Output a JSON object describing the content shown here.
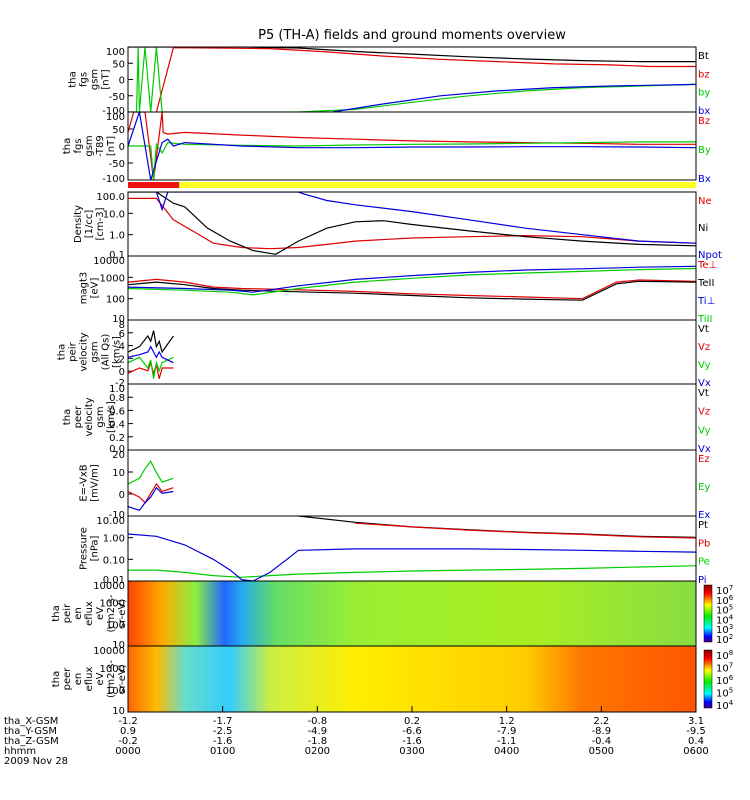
{
  "title": "P5 (TH-A) fields and ground moments overview",
  "colors": {
    "black": "#000000",
    "red": "#e00000",
    "green": "#00cc00",
    "blue": "#0000dd",
    "mode_bar_red": "#ee1111",
    "mode_bar_yellow": "#ffff22"
  },
  "chart_data": [
    {
      "type": "line",
      "panel": "fgs",
      "ylabel": [
        "tha",
        "fgs",
        "gsm",
        "[nT]"
      ],
      "ylim": [
        -100,
        100
      ],
      "yticks": [
        "100",
        "50",
        "0",
        "-50",
        "-100"
      ],
      "series": [
        {
          "name": "Bt",
          "color": "black",
          "x": [
            0.0,
            0.03,
            0.05,
            0.08,
            0.2,
            0.3,
            0.4,
            0.5,
            0.6,
            0.7,
            0.8,
            0.9,
            1.0
          ],
          "y": [
            100,
            100,
            100,
            100,
            100,
            97,
            86,
            78,
            70,
            63,
            58,
            55,
            55
          ]
        },
        {
          "name": "bz",
          "color": "red",
          "x": [
            0.05,
            0.08,
            0.15,
            0.25,
            0.35,
            0.45,
            0.55,
            0.65,
            0.75,
            0.85,
            0.92,
            1.0
          ],
          "y": [
            -100,
            98,
            97,
            95,
            85,
            72,
            62,
            55,
            48,
            45,
            40,
            40
          ]
        },
        {
          "name": "by",
          "color": "green",
          "x": [
            0.0,
            0.015,
            0.018,
            0.02,
            0.03,
            0.04,
            0.05,
            0.06,
            0.3,
            0.4,
            0.5,
            0.6,
            0.7,
            0.8,
            0.9,
            1.0
          ],
          "y": [
            -100,
            -100,
            100,
            -100,
            100,
            -100,
            100,
            -100,
            -100,
            -92,
            -70,
            -50,
            -35,
            -25,
            -20,
            -15
          ]
        },
        {
          "name": "bx",
          "color": "blue",
          "x": [
            0.36,
            0.45,
            0.55,
            0.65,
            0.75,
            0.85,
            1.0
          ],
          "y": [
            -100,
            -75,
            -50,
            -35,
            -25,
            -20,
            -15
          ]
        }
      ]
    },
    {
      "type": "line",
      "panel": "fgs-t89",
      "ylabel": [
        "tha",
        "fgs",
        "gsm",
        "-T89",
        "[nT]"
      ],
      "ylim": [
        -100,
        100
      ],
      "yticks": [
        "100",
        "50",
        "0",
        "-50",
        "-100"
      ],
      "series": [
        {
          "name": "Bz",
          "color": "red",
          "x": [
            0.0,
            0.01,
            0.03,
            0.045,
            0.06,
            0.062,
            0.07,
            0.1,
            0.2,
            0.3,
            0.4,
            0.5,
            0.6,
            0.7,
            0.8,
            0.9,
            1.0
          ],
          "y": [
            40,
            100,
            100,
            -100,
            100,
            40,
            35,
            40,
            32,
            25,
            20,
            15,
            12,
            10,
            8,
            5,
            5
          ]
        },
        {
          "name": "By",
          "color": "green",
          "x": [
            0.0,
            0.04,
            0.045,
            0.05,
            0.06,
            0.07,
            0.1,
            0.2,
            0.3,
            0.4,
            0.5,
            0.6,
            0.7,
            0.8,
            0.9,
            1.0
          ],
          "y": [
            0,
            0,
            -100,
            5,
            -20,
            10,
            5,
            2,
            0,
            3,
            5,
            6,
            8,
            10,
            12,
            12
          ]
        },
        {
          "name": "Bx",
          "color": "blue",
          "x": [
            0.0,
            0.02,
            0.04,
            0.06,
            0.07,
            0.08,
            0.1,
            0.2,
            0.3,
            0.4,
            0.5,
            0.6,
            0.7,
            0.8,
            0.9,
            1.0
          ],
          "y": [
            0,
            100,
            -100,
            10,
            20,
            0,
            10,
            0,
            -5,
            -5,
            -3,
            -3,
            -2,
            -2,
            -3,
            -5
          ]
        }
      ]
    },
    {
      "type": "line",
      "panel": "density",
      "ylabel": [
        "Density",
        "[1/cc]",
        "[cm-3]"
      ],
      "scale": "log",
      "ylim": [
        0.1,
        100
      ],
      "yticks": [
        "100.0",
        "10.0",
        "1.0",
        "0.1"
      ],
      "series": [
        {
          "name": "Ne",
          "color": "red",
          "x": [
            0.0,
            0.05,
            0.08,
            0.12,
            0.15,
            0.2,
            0.25,
            0.3,
            0.35,
            0.4,
            0.5,
            0.6,
            0.7,
            0.8,
            0.9,
            1.0
          ],
          "y": [
            50,
            50,
            5,
            1.2,
            0.4,
            0.25,
            0.22,
            0.25,
            0.35,
            0.5,
            0.7,
            0.8,
            0.9,
            0.8,
            0.5,
            0.4
          ]
        },
        {
          "name": "Ni",
          "color": "black",
          "x": [
            0.0,
            0.05,
            0.08,
            0.1,
            0.14,
            0.18,
            0.22,
            0.26,
            0.3,
            0.35,
            0.4,
            0.45,
            0.5,
            0.6,
            0.7,
            0.8,
            0.9,
            1.0
          ],
          "y": [
            100,
            100,
            30,
            20,
            2,
            0.5,
            0.18,
            0.12,
            0.5,
            2,
            4,
            4.5,
            3,
            1.5,
            0.8,
            0.5,
            0.35,
            0.3
          ]
        },
        {
          "name": "Npot",
          "color": "blue",
          "x": [
            0.05,
            0.06,
            0.07,
            0.3,
            0.31,
            0.35,
            0.4,
            0.5,
            0.6,
            0.7,
            0.8,
            0.9,
            1.0
          ],
          "y": [
            100,
            15,
            100,
            100,
            80,
            40,
            25,
            12,
            5,
            2,
            1,
            0.5,
            0.4
          ]
        }
      ]
    },
    {
      "type": "line",
      "panel": "temperature",
      "ylabel": [
        "magt3",
        "[eV]"
      ],
      "scale": "log",
      "ylim": [
        10,
        10000
      ],
      "yticks": [
        "10000",
        "1000",
        "100",
        "10"
      ],
      "series": [
        {
          "name": "Te⊥",
          "color": "red",
          "x": [
            0.0,
            0.05,
            0.1,
            0.15,
            0.2,
            0.3,
            0.4,
            0.5,
            0.6,
            0.7,
            0.8,
            0.86,
            0.9,
            1.0
          ],
          "y": [
            600,
            800,
            600,
            350,
            300,
            260,
            220,
            170,
            140,
            120,
            100,
            600,
            750,
            650
          ]
        },
        {
          "name": "TeII",
          "color": "black",
          "x": [
            0.0,
            0.05,
            0.1,
            0.15,
            0.2,
            0.3,
            0.4,
            0.5,
            0.6,
            0.7,
            0.8,
            0.86,
            0.9,
            1.0
          ],
          "y": [
            450,
            600,
            450,
            300,
            250,
            210,
            180,
            140,
            110,
            95,
            85,
            500,
            650,
            600
          ]
        },
        {
          "name": "Ti⊥",
          "color": "blue",
          "x": [
            0.0,
            0.1,
            0.18,
            0.22,
            0.3,
            0.4,
            0.5,
            0.6,
            0.7,
            0.8,
            0.9,
            1.0
          ],
          "y": [
            350,
            300,
            250,
            200,
            400,
            800,
            1200,
            1700,
            2200,
            2500,
            3000,
            3300
          ]
        },
        {
          "name": "TiII",
          "color": "green",
          "x": [
            0.0,
            0.1,
            0.18,
            0.22,
            0.3,
            0.4,
            0.5,
            0.6,
            0.7,
            0.8,
            0.9,
            1.0
          ],
          "y": [
            300,
            250,
            200,
            150,
            300,
            600,
            900,
            1300,
            1600,
            1900,
            2300,
            2600
          ]
        }
      ]
    },
    {
      "type": "line",
      "panel": "ion-velocity",
      "ylabel": [
        "tha",
        "peir",
        "velocity",
        "gsm",
        "(All Qs)",
        "[km/s]"
      ],
      "ylim": [
        -4,
        8
      ],
      "yticks": [
        "8",
        "6",
        "4",
        "2",
        "0",
        "-2"
      ],
      "series": [
        {
          "name": "Vt",
          "color": "black",
          "x": [
            0.0,
            0.02,
            0.035,
            0.04,
            0.045,
            0.05,
            0.055,
            0.06,
            0.08
          ],
          "y": [
            2,
            3,
            5,
            4,
            6,
            3,
            4,
            2,
            5
          ]
        },
        {
          "name": "Vz",
          "color": "red",
          "x": [
            0.0,
            0.02,
            0.035,
            0.04,
            0.045,
            0.05,
            0.055,
            0.06,
            0.08
          ],
          "y": [
            -2,
            -1,
            -1.5,
            0,
            -2,
            -0.5,
            -3,
            -1,
            -1
          ]
        },
        {
          "name": "Vy",
          "color": "green",
          "x": [
            0.0,
            0.02,
            0.035,
            0.04,
            0.045,
            0.05,
            0.055,
            0.06,
            0.08
          ],
          "y": [
            0,
            1,
            -1,
            0.5,
            -3,
            0,
            -1.5,
            0,
            1
          ]
        },
        {
          "name": "Vx",
          "color": "blue",
          "x": [
            0.0,
            0.02,
            0.035,
            0.04,
            0.045,
            0.05,
            0.055,
            0.06,
            0.08
          ],
          "y": [
            1,
            1.5,
            2,
            3,
            2,
            1,
            2,
            1,
            0
          ]
        }
      ]
    },
    {
      "type": "line",
      "panel": "electron-velocity",
      "ylabel": [
        "tha",
        "peer",
        "velocity",
        "gsm",
        "[km/s]"
      ],
      "ylim": [
        0,
        1
      ],
      "yticks": [
        "1.0",
        "0.8",
        "0.6",
        "0.4",
        "0.2",
        "0.0"
      ],
      "series": [
        {
          "name": "Vt",
          "color": "black",
          "x": [],
          "y": []
        },
        {
          "name": "Vz",
          "color": "red",
          "x": [],
          "y": []
        },
        {
          "name": "Vy",
          "color": "green",
          "x": [],
          "y": []
        },
        {
          "name": "Vx",
          "color": "blue",
          "x": [],
          "y": []
        }
      ]
    },
    {
      "type": "line",
      "panel": "efield",
      "ylabel": [
        "E=-VxB",
        "[mV/m]"
      ],
      "ylim": [
        -15,
        20
      ],
      "yticks": [
        "20",
        "10",
        "0",
        "-10"
      ],
      "series": [
        {
          "name": "Ez",
          "color": "red",
          "x": [
            0.0,
            0.02,
            0.03,
            0.04,
            0.05,
            0.06,
            0.08
          ],
          "y": [
            -2,
            -5,
            -8,
            -3,
            2,
            -2,
            0
          ]
        },
        {
          "name": "Ey",
          "color": "green",
          "x": [
            0.0,
            0.02,
            0.03,
            0.04,
            0.05,
            0.06,
            0.08
          ],
          "y": [
            2,
            5,
            10,
            14,
            8,
            3,
            5
          ]
        },
        {
          "name": "Ex",
          "color": "blue",
          "x": [
            0.0,
            0.02,
            0.03,
            0.04,
            0.05,
            0.06,
            0.08
          ],
          "y": [
            -10,
            -12,
            -8,
            -5,
            0,
            -3,
            -2
          ]
        }
      ]
    },
    {
      "type": "line",
      "panel": "pressure",
      "ylabel": [
        "Pressure",
        "[nPa]"
      ],
      "scale": "log",
      "ylim": [
        0.005,
        20
      ],
      "yticks": [
        "10.00",
        "1.00",
        "0.10",
        "0.01"
      ],
      "series": [
        {
          "name": "Pt",
          "color": "black",
          "x": [
            0.3,
            0.4,
            0.5,
            0.6,
            0.7,
            0.8,
            0.9,
            1.0
          ],
          "y": [
            20,
            9,
            5,
            3.5,
            2.5,
            2,
            1.5,
            1.3
          ]
        },
        {
          "name": "Pb",
          "color": "red",
          "x": [
            0.4,
            0.5,
            0.6,
            0.7,
            0.8,
            0.9,
            1.0
          ],
          "y": [
            8,
            5,
            3.3,
            2.4,
            1.9,
            1.4,
            1.2
          ]
        },
        {
          "name": "Pe",
          "color": "green",
          "x": [
            0.0,
            0.05,
            0.1,
            0.15,
            0.2,
            0.25,
            0.3,
            0.4,
            0.5,
            0.6,
            0.7,
            0.8,
            0.9,
            1.0
          ],
          "y": [
            0.02,
            0.02,
            0.015,
            0.01,
            0.008,
            0.01,
            0.012,
            0.015,
            0.018,
            0.02,
            0.022,
            0.025,
            0.03,
            0.035
          ]
        },
        {
          "name": "Pi",
          "color": "blue",
          "x": [
            0.0,
            0.05,
            0.1,
            0.15,
            0.18,
            0.2,
            0.22,
            0.25,
            0.28,
            0.3,
            0.4,
            0.5,
            0.6,
            0.7,
            0.8,
            0.9,
            1.0
          ],
          "y": [
            2,
            1.5,
            0.5,
            0.08,
            0.02,
            0.006,
            0.005,
            0.015,
            0.08,
            0.25,
            0.3,
            0.3,
            0.3,
            0.28,
            0.25,
            0.22,
            0.2
          ]
        }
      ]
    },
    {
      "type": "heatmap",
      "panel": "ion-spectrogram",
      "ylabel": [
        "tha",
        "peir",
        "en",
        "eflux",
        "eV",
        "(cm2-s-",
        "sr-eV)"
      ],
      "yticks": [
        "10000",
        "1000",
        "100",
        "10"
      ],
      "colorbar_ticks": [
        "10^7",
        "10^6",
        "10^5",
        "10^4",
        "10^3",
        "10^2"
      ]
    },
    {
      "type": "heatmap",
      "panel": "electron-spectrogram",
      "ylabel": [
        "tha",
        "peer",
        "en",
        "eflux",
        "eV",
        "(cm2-s-",
        "sr-eV)"
      ],
      "yticks": [
        "10000",
        "1000",
        "100",
        "10"
      ],
      "colorbar_ticks": [
        "10^8",
        "10^7",
        "10^6",
        "10^5",
        "10^4"
      ]
    }
  ],
  "x_axis": {
    "row_labels": [
      "tha_X-GSM",
      "tha_Y-GSM",
      "tha_Z-GSM",
      "hhmm",
      "2009 Nov 28"
    ],
    "columns": [
      [
        "-1.2",
        "0.9",
        "-0.2",
        "0000"
      ],
      [
        "-1.7",
        "-2.5",
        "-1.6",
        "0100"
      ],
      [
        "-0.8",
        "-4.9",
        "-1.8",
        "0200"
      ],
      [
        "0.2",
        "-6.6",
        "-1.6",
        "0300"
      ],
      [
        "1.2",
        "-7.9",
        "-1.1",
        "0400"
      ],
      [
        "2.2",
        "-8.9",
        "-0.4",
        "0500"
      ],
      [
        "3.1",
        "-9.5",
        "0.4",
        "0600"
      ]
    ]
  },
  "mode_bar": {
    "red_fraction": 0.09
  }
}
